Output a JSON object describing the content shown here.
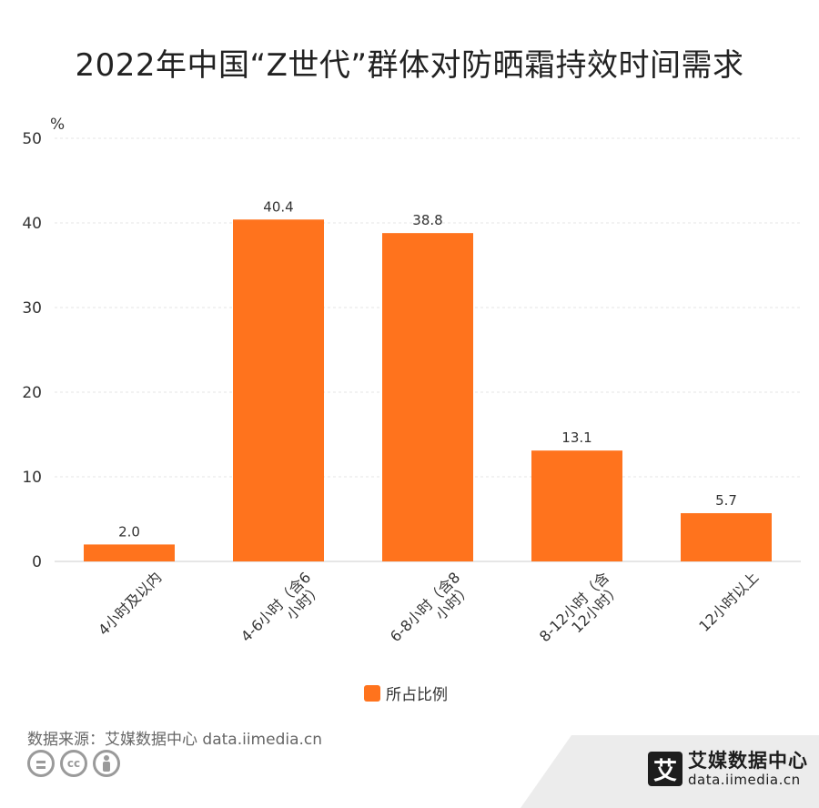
{
  "chart_data": {
    "type": "bar",
    "title": "2022年中国“Z世代”群体对防晒霜持效时间需求",
    "ylabel": "%",
    "xlabel": "",
    "ylim": [
      0,
      50
    ],
    "yticks": [
      0,
      10,
      20,
      30,
      40,
      50
    ],
    "grid": true,
    "legend_position": "bottom",
    "categories": [
      "4小时及以内",
      "4-6小时（含6小时）",
      "6-8小时（含8小时）",
      "8-12小时（含12小时）",
      "12小时以上"
    ],
    "category_lines": [
      [
        "4小时及以内"
      ],
      [
        "4-6小时（含6",
        "小时）"
      ],
      [
        "6-8小时（含8",
        "小时）"
      ],
      [
        "8-12小时（含",
        "12小时）"
      ],
      [
        "12小时以上"
      ]
    ],
    "series": [
      {
        "name": "所占比例",
        "values": [
          2.0,
          40.4,
          38.8,
          13.1,
          5.7
        ],
        "labels": [
          "2.0",
          "40.4",
          "38.8",
          "13.1",
          "5.7"
        ],
        "color": "#FF731D"
      }
    ]
  },
  "source": "数据来源：艾媒数据中心 data.iimedia.cn",
  "brand": {
    "name_cn": "艾媒数据中心",
    "url": "data.iimedia.cn",
    "logo_char": "艾"
  },
  "colors": {
    "bar": "#FF731D",
    "grid": "#e6e6e6",
    "axis": "#cccccc",
    "text": "#333333"
  },
  "icons": [
    "cc-equal-icon",
    "cc-icon",
    "cc-by-icon"
  ]
}
